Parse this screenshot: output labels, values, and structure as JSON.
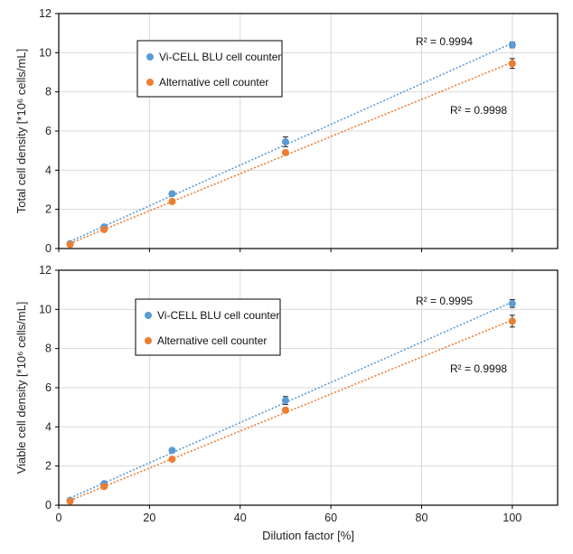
{
  "chart_data": [
    {
      "type": "scatter",
      "ylabel": "Total cell density [*10⁶ cells/mL]",
      "xlabel": "",
      "xlim": [
        0,
        110
      ],
      "ylim": [
        0,
        12
      ],
      "x_ticks": [
        0,
        20,
        40,
        60,
        80,
        100
      ],
      "y_ticks": [
        0,
        2,
        4,
        6,
        8,
        10,
        12
      ],
      "x_tick_labels_shown": false,
      "grid": true,
      "legend_position": "upper-left",
      "series": [
        {
          "name": "Vi-CELL BLU cell counter",
          "color": "#5b9bd5",
          "x": [
            2.5,
            10,
            25,
            50,
            100
          ],
          "y": [
            0.25,
            1.1,
            2.8,
            5.45,
            10.4
          ],
          "err": [
            0.05,
            0.08,
            0.08,
            0.25,
            0.15
          ],
          "trendline": "linear",
          "r2_label": "R² = 0.9994"
        },
        {
          "name": "Alternative cell counter",
          "color": "#ed7d31",
          "x": [
            2.5,
            10,
            25,
            50,
            100
          ],
          "y": [
            0.2,
            0.97,
            2.4,
            4.9,
            9.45
          ],
          "err": [
            0.05,
            0.08,
            0.08,
            0.12,
            0.25
          ],
          "trendline": "linear",
          "r2_label": "R² = 0.9998"
        }
      ]
    },
    {
      "type": "scatter",
      "ylabel": "Viable cell density [*10⁶ cells/mL]",
      "xlabel": "Dilution factor [%]",
      "xlim": [
        0,
        110
      ],
      "ylim": [
        0,
        12
      ],
      "x_ticks": [
        0,
        20,
        40,
        60,
        80,
        100
      ],
      "y_ticks": [
        0,
        2,
        4,
        6,
        8,
        10,
        12
      ],
      "x_tick_labels_shown": true,
      "grid": true,
      "legend_position": "upper-left",
      "series": [
        {
          "name": "Vi-CELL BLU cell counter",
          "color": "#5b9bd5",
          "x": [
            2.5,
            10,
            25,
            50,
            100
          ],
          "y": [
            0.25,
            1.1,
            2.8,
            5.35,
            10.3
          ],
          "err": [
            0.05,
            0.08,
            0.08,
            0.2,
            0.2
          ],
          "trendline": "linear",
          "r2_label": "R² = 0.9995"
        },
        {
          "name": "Alternative cell counter",
          "color": "#ed7d31",
          "x": [
            2.5,
            10,
            25,
            50,
            100
          ],
          "y": [
            0.2,
            0.95,
            2.35,
            4.85,
            9.4
          ],
          "err": [
            0.05,
            0.08,
            0.08,
            0.12,
            0.3
          ],
          "trendline": "linear",
          "r2_label": "R² = 0.9998"
        }
      ]
    }
  ]
}
